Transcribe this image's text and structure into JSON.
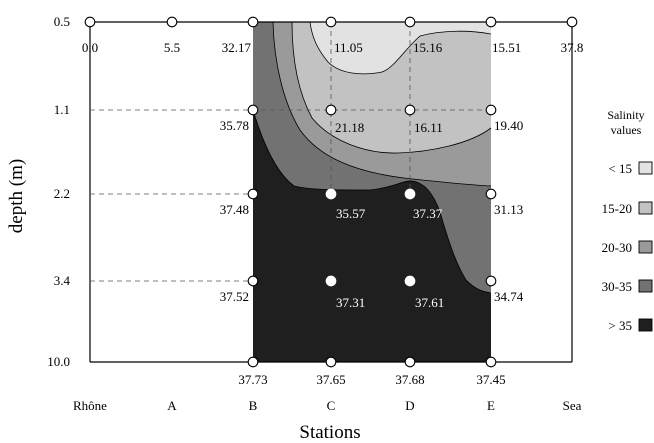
{
  "chart_data": {
    "type": "heatmap",
    "title": "",
    "xlabel": "Stations",
    "ylabel": "depth (m)",
    "stations": [
      "Rhône",
      "A",
      "B",
      "C",
      "D",
      "E",
      "Sea"
    ],
    "depths": [
      "0.5",
      "1.1",
      "2.2",
      "3.4",
      "10.0"
    ],
    "legend": {
      "title_line1": "Salinity",
      "title_line2": "values",
      "classes": [
        {
          "label": "< 15",
          "color": "#e2e2e2"
        },
        {
          "label": "15-20",
          "color": "#c2c2c2"
        },
        {
          "label": "20-30",
          "color": "#9a9a9a"
        },
        {
          "label": "30-35",
          "color": "#727272"
        },
        {
          "label": "> 35",
          "color": "#1f1f1f"
        }
      ]
    },
    "measurements": [
      {
        "station": "Rhône",
        "depth": "0.5",
        "value": "0.0"
      },
      {
        "station": "A",
        "depth": "0.5",
        "value": "5.5"
      },
      {
        "station": "B",
        "depth": "0.5",
        "value": "32.17"
      },
      {
        "station": "C",
        "depth": "0.5",
        "value": "11.05"
      },
      {
        "station": "D",
        "depth": "0.5",
        "value": "15.16"
      },
      {
        "station": "E",
        "depth": "0.5",
        "value": "15.51"
      },
      {
        "station": "Sea",
        "depth": "0.5",
        "value": "37.8"
      },
      {
        "station": "B",
        "depth": "1.1",
        "value": "35.78"
      },
      {
        "station": "C",
        "depth": "1.1",
        "value": "21.18"
      },
      {
        "station": "D",
        "depth": "1.1",
        "value": "16.11"
      },
      {
        "station": "E",
        "depth": "1.1",
        "value": "19.40"
      },
      {
        "station": "B",
        "depth": "2.2",
        "value": "37.48"
      },
      {
        "station": "C",
        "depth": "2.2",
        "value": "35.57"
      },
      {
        "station": "D",
        "depth": "2.2",
        "value": "37.37"
      },
      {
        "station": "E",
        "depth": "2.2",
        "value": "31.13"
      },
      {
        "station": "B",
        "depth": "3.4",
        "value": "37.52"
      },
      {
        "station": "C",
        "depth": "3.4",
        "value": "37.31"
      },
      {
        "station": "D",
        "depth": "3.4",
        "value": "37.61"
      },
      {
        "station": "E",
        "depth": "3.4",
        "value": "34.74"
      },
      {
        "station": "B",
        "depth": "10.0",
        "value": "37.73"
      },
      {
        "station": "C",
        "depth": "10.0",
        "value": "37.65"
      },
      {
        "station": "D",
        "depth": "10.0",
        "value": "37.68"
      },
      {
        "station": "E",
        "depth": "10.0",
        "value": "37.45"
      }
    ]
  }
}
